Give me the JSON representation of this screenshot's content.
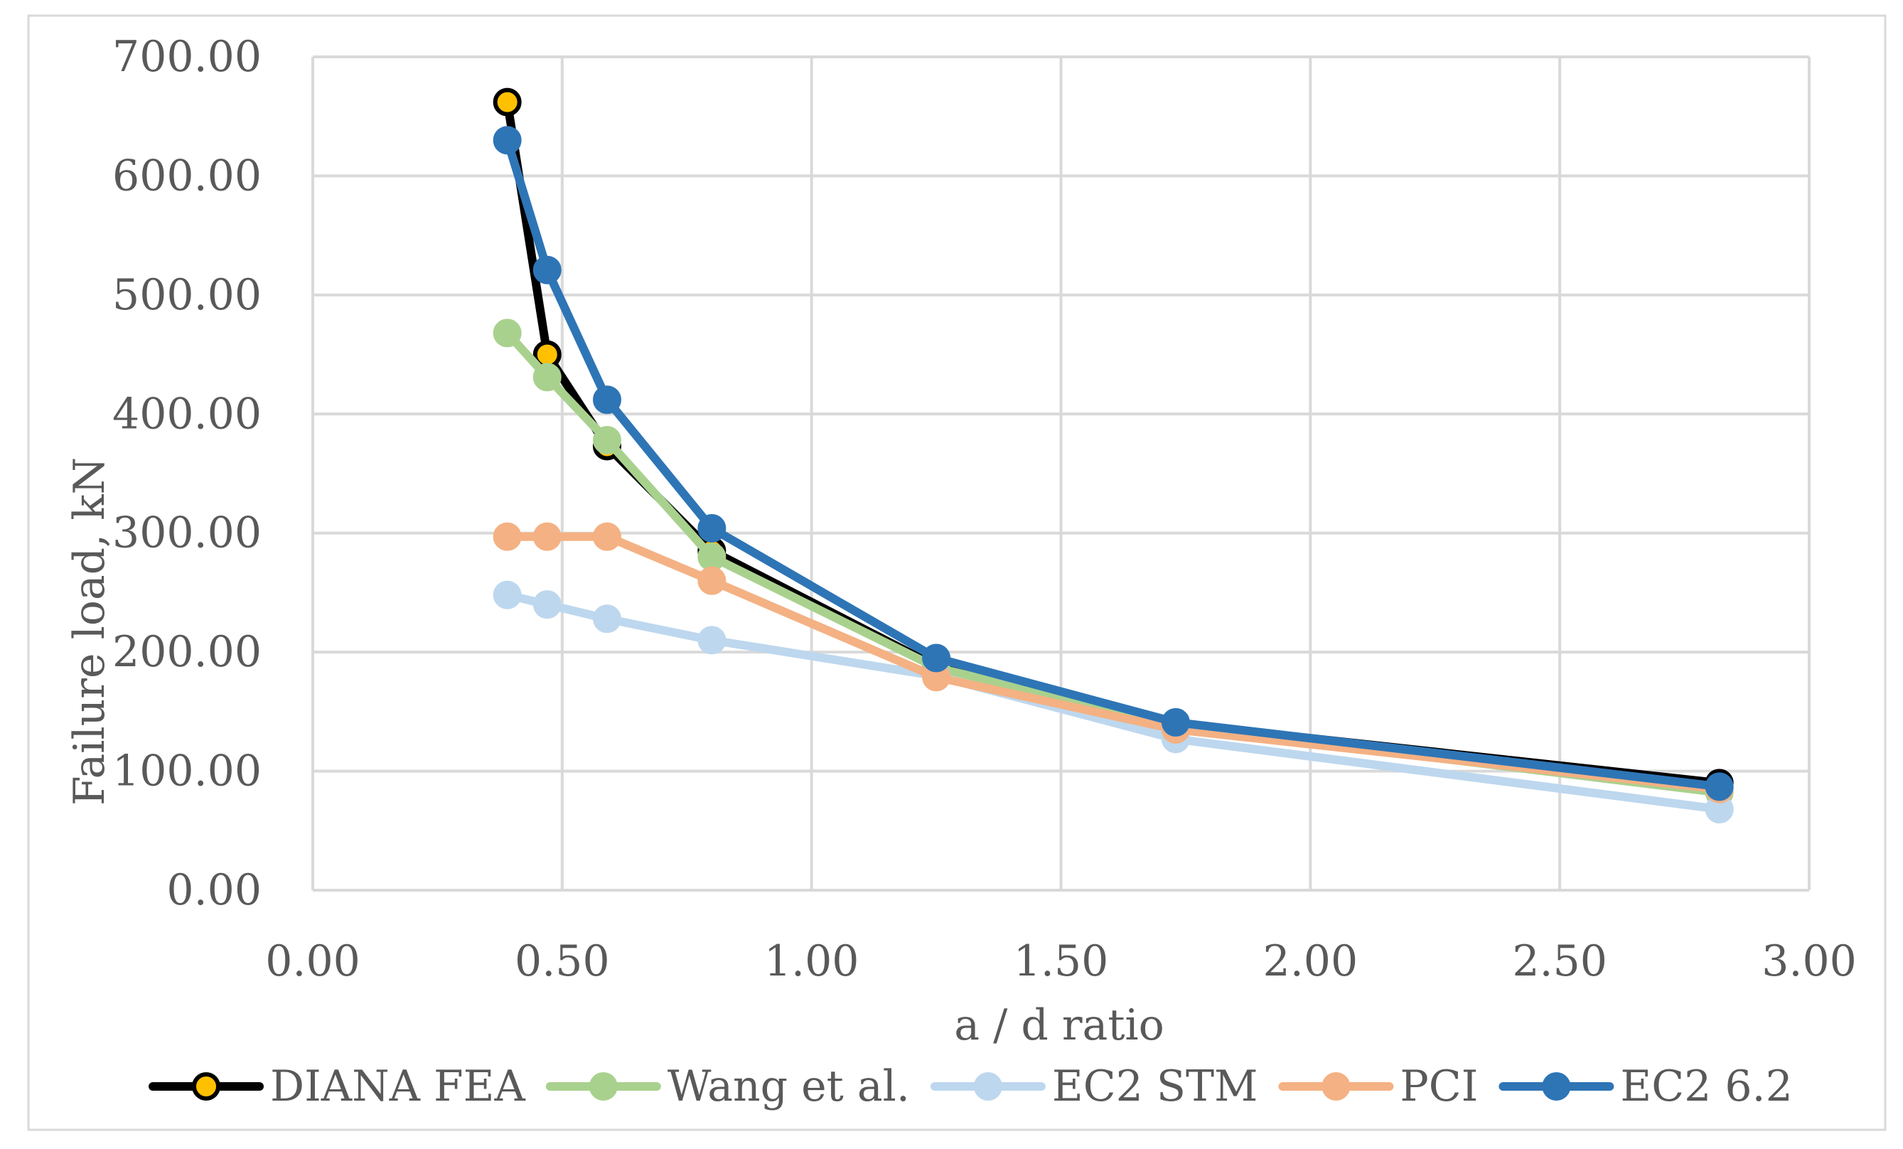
{
  "chart_data": {
    "type": "line",
    "title": "",
    "xlabel": "a / d ratio",
    "ylabel": "Failure load, kN",
    "xlim": [
      0,
      3
    ],
    "ylim": [
      0,
      700
    ],
    "x_ticks": [
      "0.00",
      "0.50",
      "1.00",
      "1.50",
      "2.00",
      "2.50",
      "3.00"
    ],
    "y_ticks": [
      "0.00",
      "100.00",
      "200.00",
      "300.00",
      "400.00",
      "500.00",
      "600.00",
      "700.00"
    ],
    "grid": true,
    "legend_position": "bottom",
    "x": [
      0.39,
      0.47,
      0.59,
      0.8,
      1.25,
      1.73,
      2.82
    ],
    "series": [
      {
        "name": "DIANA FEA",
        "values": [
          662,
          450,
          373,
          285,
          188,
          140,
          90
        ],
        "color": "#000000",
        "marker_fill": "#FFC000"
      },
      {
        "name": "Wang et al.",
        "values": [
          468,
          431,
          378,
          280,
          187,
          138,
          82
        ],
        "color": "#A9D18E",
        "marker_fill": "#A9D18E"
      },
      {
        "name": "EC2 STM",
        "values": [
          248,
          240,
          228,
          210,
          180,
          127,
          68
        ],
        "color": "#BDD7EE",
        "marker_fill": "#BDD7EE"
      },
      {
        "name": "PCI",
        "values": [
          297,
          297,
          297,
          260,
          179,
          135,
          85
        ],
        "color": "#F4B183",
        "marker_fill": "#F4B183"
      },
      {
        "name": "EC2 6.2",
        "values": [
          630,
          521,
          412,
          304,
          195,
          141,
          87
        ],
        "color": "#2E75B6",
        "marker_fill": "#2E75B6"
      }
    ]
  }
}
